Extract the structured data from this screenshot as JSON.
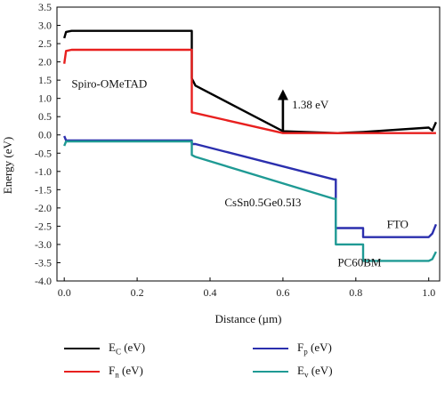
{
  "chart_data": {
    "type": "line",
    "xlabel": "Distance (µm)",
    "ylabel": "Energy (eV)",
    "xlim": [
      -0.02,
      1.03
    ],
    "ylim": [
      -4.0,
      3.5
    ],
    "xticks": [
      0.0,
      0.2,
      0.4,
      0.6,
      0.8,
      1.0
    ],
    "xtick_labels": [
      "0.0",
      "0.2",
      "0.4",
      "0.6",
      "0.8",
      "1.0"
    ],
    "yticks": [
      3.5,
      3.0,
      2.5,
      2.0,
      1.5,
      1.0,
      0.5,
      0.0,
      -0.5,
      -1.0,
      -1.5,
      -2.0,
      -2.5,
      -3.0,
      -3.5,
      -4.0
    ],
    "ytick_labels": [
      "3.5",
      "3.0",
      "2.5",
      "2.0",
      "1.5",
      "1.0",
      "0.5",
      "0.0",
      "-0.5",
      "-1.0",
      "-1.5",
      "-2.0",
      "-2.5",
      "-3.0",
      "-3.5",
      "-4.0"
    ],
    "grid": false,
    "legend_position": "bottom",
    "series": [
      {
        "key": "Ec",
        "color": "#000000",
        "x": [
          0.0,
          0.005,
          0.02,
          0.35,
          0.35,
          0.36,
          0.6,
          0.75,
          0.82,
          1.0,
          1.01,
          1.02
        ],
        "y": [
          2.65,
          2.82,
          2.85,
          2.85,
          1.55,
          1.35,
          0.1,
          0.05,
          0.08,
          0.2,
          0.12,
          0.35
        ]
      },
      {
        "key": "Fn",
        "color": "#e8201f",
        "x": [
          0.0,
          0.005,
          0.02,
          0.35,
          0.35,
          0.6,
          1.02
        ],
        "y": [
          1.95,
          2.3,
          2.33,
          2.33,
          0.62,
          0.05,
          0.05
        ]
      },
      {
        "key": "Fp",
        "color": "#2b2fae",
        "x": [
          0.0,
          0.005,
          0.02,
          0.35,
          0.35,
          0.36,
          0.74,
          0.745,
          0.745,
          0.82,
          0.82,
          1.0,
          1.01,
          1.02
        ],
        "y": [
          -0.03,
          -0.15,
          -0.15,
          -0.15,
          -0.25,
          -0.25,
          -1.22,
          -1.22,
          -2.55,
          -2.55,
          -2.8,
          -2.8,
          -2.7,
          -2.45
        ]
      },
      {
        "key": "Ev",
        "color": "#1f9a94",
        "x": [
          0.0,
          0.005,
          0.02,
          0.35,
          0.35,
          0.36,
          0.74,
          0.745,
          0.745,
          0.82,
          0.82,
          1.0,
          1.01,
          1.02
        ],
        "y": [
          -0.3,
          -0.18,
          -0.18,
          -0.18,
          -0.55,
          -0.6,
          -1.75,
          -1.75,
          -3.0,
          -3.0,
          -3.45,
          -3.45,
          -3.4,
          -3.2
        ]
      }
    ],
    "annotations": [
      {
        "text": "Spiro-OMeTAD",
        "x": 0.02,
        "y": 1.3
      },
      {
        "text": "1.38 eV",
        "x": 0.625,
        "y": 0.72
      },
      {
        "text": "CsSn0.5Ge0.5I3",
        "x": 0.44,
        "y": -1.95
      },
      {
        "text": "FTO",
        "x": 0.885,
        "y": -2.55
      },
      {
        "text": "PC60BM",
        "x": 0.75,
        "y": -3.6
      }
    ],
    "arrow": {
      "x": 0.6,
      "y_from": 0.1,
      "y_to": 1.2,
      "color": "#000000"
    }
  },
  "legend": [
    {
      "main": "E",
      "sub": "C",
      "unit": " (eV)",
      "color": "#000000",
      "col": 0,
      "row": 0
    },
    {
      "main": "F",
      "sub": "n",
      "unit": " (eV)",
      "color": "#e8201f",
      "col": 0,
      "row": 1
    },
    {
      "main": "F",
      "sub": "p",
      "unit": " (eV)",
      "color": "#2b2fae",
      "col": 1,
      "row": 0
    },
    {
      "main": "E",
      "sub": "v",
      "unit": " (eV)",
      "color": "#1f9a94",
      "col": 1,
      "row": 1
    }
  ]
}
